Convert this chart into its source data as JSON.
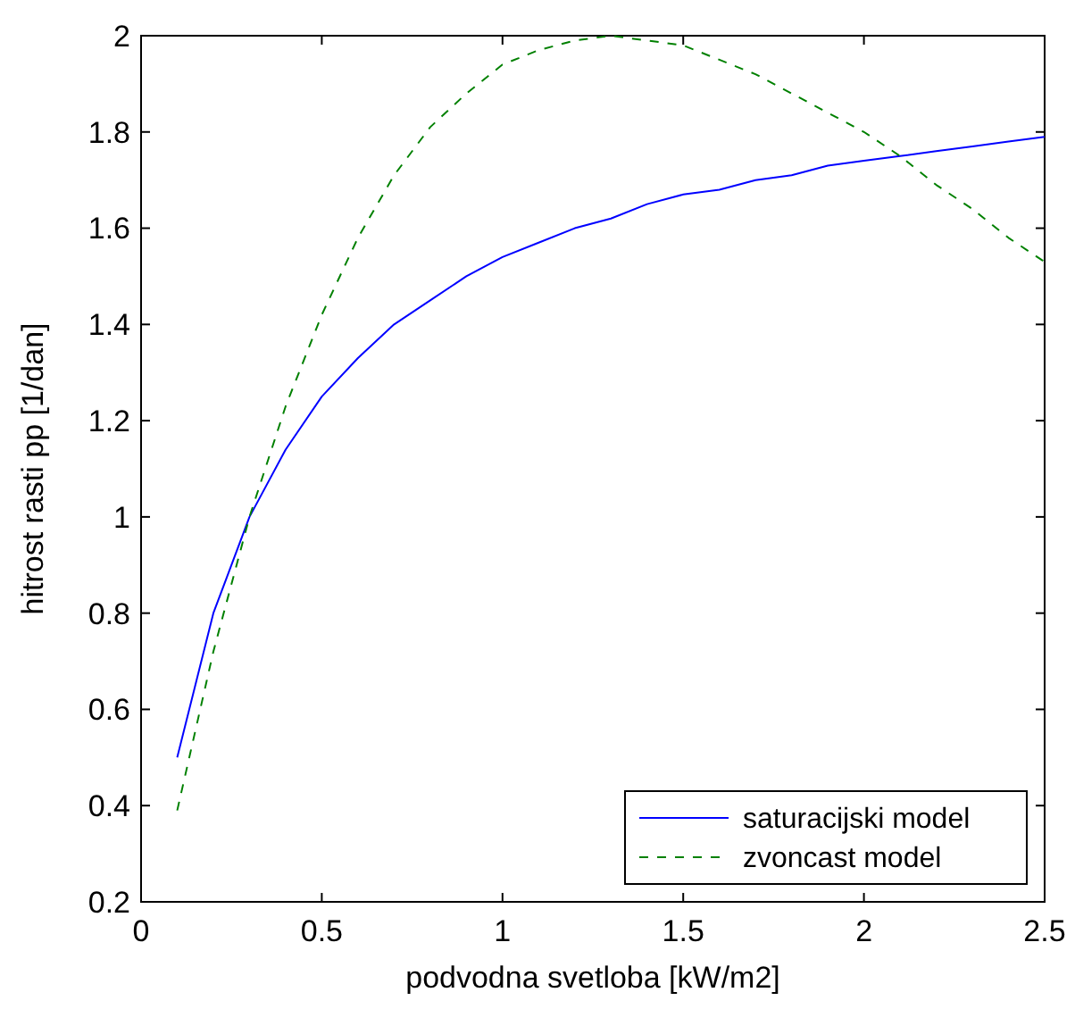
{
  "chart_data": {
    "type": "line",
    "xlabel": "podvodna svetloba [kW/m2]",
    "ylabel": "hitrost rasti pp [1/dan]",
    "x": [
      0.1,
      0.2,
      0.3,
      0.4,
      0.5,
      0.6,
      0.7,
      0.8,
      0.9,
      1.0,
      1.1,
      1.2,
      1.3,
      1.4,
      1.5,
      1.6,
      1.7,
      1.8,
      1.9,
      2.0,
      2.1,
      2.2,
      2.3,
      2.4,
      2.5
    ],
    "series": [
      {
        "name": "saturacijski model",
        "color": "#0000ff",
        "line_style": "solid",
        "values": [
          0.5,
          0.8,
          1.0,
          1.14,
          1.25,
          1.33,
          1.4,
          1.45,
          1.5,
          1.54,
          1.57,
          1.6,
          1.62,
          1.65,
          1.67,
          1.68,
          1.7,
          1.71,
          1.73,
          1.74,
          1.75,
          1.76,
          1.77,
          1.78,
          1.79
        ]
      },
      {
        "name": "zvoncast model",
        "color": "#008000",
        "line_style": "dashed",
        "values": [
          0.39,
          0.72,
          1.0,
          1.23,
          1.42,
          1.58,
          1.71,
          1.81,
          1.88,
          1.94,
          1.97,
          1.99,
          2.0,
          1.99,
          1.98,
          1.95,
          1.92,
          1.88,
          1.84,
          1.8,
          1.75,
          1.69,
          1.64,
          1.58,
          1.53
        ]
      }
    ],
    "xlim": [
      0,
      2.5
    ],
    "xticks": [
      0,
      0.5,
      1,
      1.5,
      2,
      2.5
    ],
    "ylim": [
      0.2,
      2
    ],
    "yticks": [
      0.2,
      0.4,
      0.6,
      0.8,
      1,
      1.2,
      1.4,
      1.6,
      1.8,
      2
    ],
    "grid": false,
    "legend": "bottom right",
    "marker": "none"
  }
}
